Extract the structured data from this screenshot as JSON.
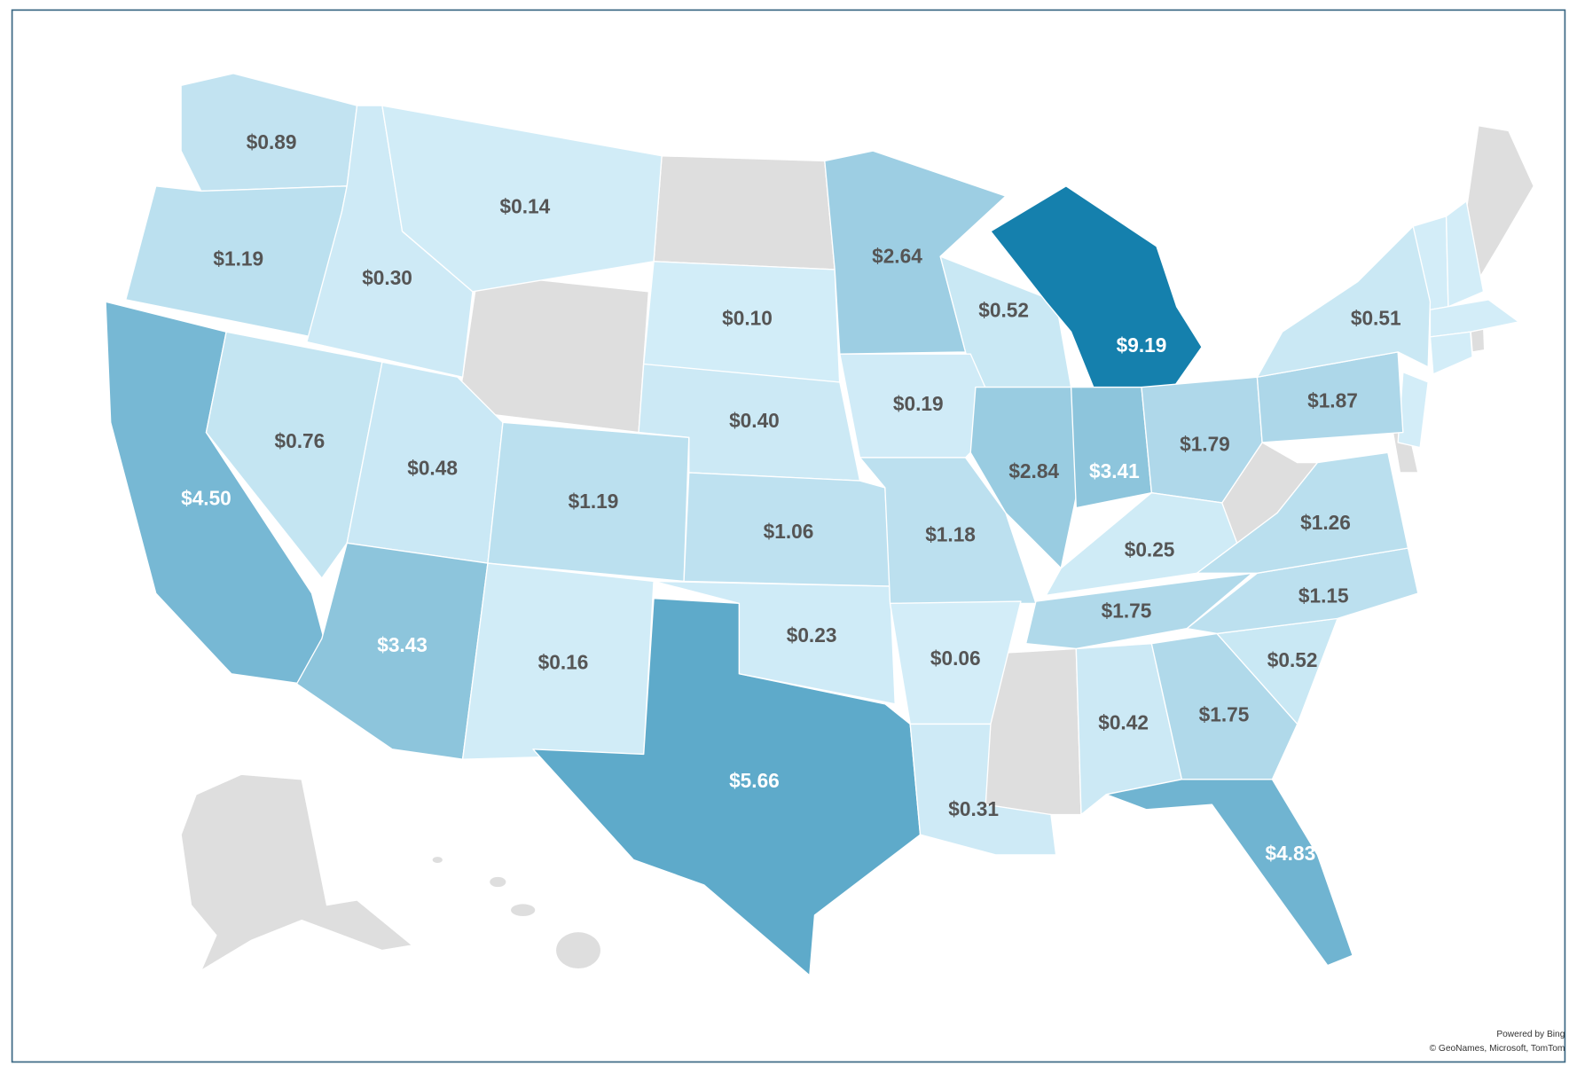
{
  "chart_data": {
    "type": "choropleth",
    "values": [
      0.89,
      1.19,
      0.3,
      0.14,
      0.1,
      0.4,
      2.64,
      0.52,
      9.19,
      0.19,
      2.84,
      3.41,
      1.79,
      1.87,
      0.51,
      4.5,
      0.76,
      0.48,
      3.43,
      1.19,
      1.06,
      0.16,
      5.66,
      0.23,
      1.18,
      0.06,
      0.31,
      0.42,
      1.75,
      4.83,
      0.52,
      1.15,
      1.75,
      0.25,
      1.26
    ],
    "value_labels": [
      "$0.89",
      "$1.19",
      "$0.30",
      "$0.14",
      "$0.10",
      "$0.40",
      "$2.64",
      "$0.52",
      "$9.19",
      "$0.19",
      "$2.84",
      "$3.41",
      "$1.79",
      "$1.87",
      "$0.51",
      "$4.50",
      "$0.76",
      "$0.48",
      "$3.43",
      "$1.19",
      "$1.06",
      "$0.16",
      "$5.66",
      "$0.23",
      "$1.18",
      "$0.06",
      "$0.31",
      "$0.42",
      "$1.75",
      "$4.83",
      "$0.52",
      "$1.15",
      "$1.75",
      "$0.25",
      "$1.26"
    ],
    "color_scale": [
      "#d3edf8",
      "#1580ad"
    ]
  },
  "attribution": {
    "powered_by": "Powered by Bing",
    "credits": "© GeoNames, Microsoft, TomTom"
  }
}
